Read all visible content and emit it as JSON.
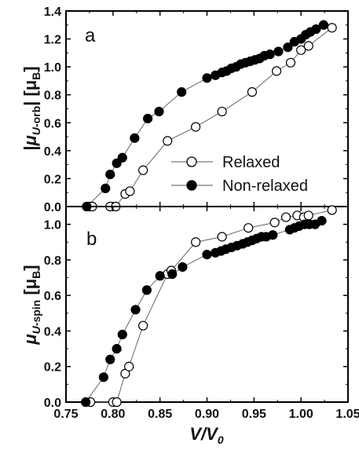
{
  "chart_data": [
    {
      "type": "scatter",
      "panel": "a",
      "ylabel": "|μU-orb| [μB]",
      "xlabel": "",
      "xlim": [
        0.75,
        1.05
      ],
      "ylim": [
        0.0,
        1.4
      ],
      "x_ticks": [
        "0.75",
        "0.80",
        "0.85",
        "0.90",
        "0.95",
        "1.00",
        "1.05"
      ],
      "y_ticks": [
        "0.0",
        "0.2",
        "0.4",
        "0.6",
        "0.8",
        "1.0",
        "1.2",
        "1.4"
      ],
      "legend_position": "center-right",
      "series": [
        {
          "name": "Relaxed",
          "marker": "open-circle",
          "x": [
            0.775,
            0.778,
            0.797,
            0.803,
            0.813,
            0.818,
            0.832,
            0.858,
            0.888,
            0.916,
            0.948,
            0.974,
            0.989,
            1.0,
            1.008,
            1.033
          ],
          "y": [
            0.0,
            0.0,
            0.0,
            0.0,
            0.09,
            0.11,
            0.26,
            0.47,
            0.57,
            0.68,
            0.82,
            0.97,
            1.03,
            1.12,
            1.15,
            1.28
          ]
        },
        {
          "name": "Non-relaxed",
          "marker": "filled-circle",
          "x": [
            0.772,
            0.792,
            0.797,
            0.804,
            0.81,
            0.823,
            0.837,
            0.849,
            0.873,
            0.9,
            0.909,
            0.916,
            0.921,
            0.926,
            0.931,
            0.936,
            0.941,
            0.946,
            0.951,
            0.956,
            0.961,
            0.967,
            0.976,
            0.986,
            0.993,
            1.0,
            1.005,
            1.01,
            1.016,
            1.024
          ],
          "y": [
            0.0,
            0.13,
            0.23,
            0.31,
            0.35,
            0.49,
            0.63,
            0.68,
            0.82,
            0.92,
            0.94,
            0.96,
            0.97,
            0.99,
            1.0,
            1.02,
            1.03,
            1.04,
            1.05,
            1.06,
            1.08,
            1.09,
            1.11,
            1.14,
            1.18,
            1.2,
            1.23,
            1.25,
            1.27,
            1.3
          ]
        }
      ]
    },
    {
      "type": "scatter",
      "panel": "b",
      "ylabel": "μU-spin [μB]",
      "xlabel": "V/V0",
      "xlim": [
        0.75,
        1.05
      ],
      "ylim": [
        0.0,
        1.1
      ],
      "x_ticks": [
        "0.75",
        "0.80",
        "0.85",
        "0.90",
        "0.95",
        "1.00",
        "1.05"
      ],
      "y_ticks": [
        "0.0",
        "0.2",
        "0.4",
        "0.6",
        "0.8",
        "1.0"
      ],
      "series": [
        {
          "name": "Relaxed",
          "marker": "open-circle",
          "x": [
            0.776,
            0.8,
            0.804,
            0.813,
            0.817,
            0.832,
            0.858,
            0.862,
            0.888,
            0.916,
            0.944,
            0.972,
            0.984,
            0.996,
            1.003,
            1.008,
            1.033
          ],
          "y": [
            0.0,
            0.0,
            0.0,
            0.16,
            0.2,
            0.43,
            0.72,
            0.74,
            0.9,
            0.93,
            0.98,
            1.01,
            1.04,
            1.05,
            1.04,
            1.05,
            1.08
          ]
        },
        {
          "name": "Non-relaxed",
          "marker": "filled-circle",
          "x": [
            0.771,
            0.79,
            0.797,
            0.804,
            0.81,
            0.824,
            0.836,
            0.85,
            0.863,
            0.874,
            0.9,
            0.909,
            0.915,
            0.92,
            0.926,
            0.932,
            0.938,
            0.943,
            0.948,
            0.953,
            0.958,
            0.963,
            0.97,
            0.988,
            0.993,
            0.998,
            1.004,
            1.009,
            1.015,
            1.022
          ],
          "y": [
            0.0,
            0.14,
            0.24,
            0.3,
            0.38,
            0.52,
            0.63,
            0.71,
            0.72,
            0.76,
            0.83,
            0.84,
            0.85,
            0.86,
            0.87,
            0.88,
            0.89,
            0.9,
            0.91,
            0.92,
            0.93,
            0.93,
            0.94,
            0.97,
            0.98,
            0.99,
            1.0,
            1.0,
            1.0,
            1.02
          ]
        }
      ]
    }
  ]
}
